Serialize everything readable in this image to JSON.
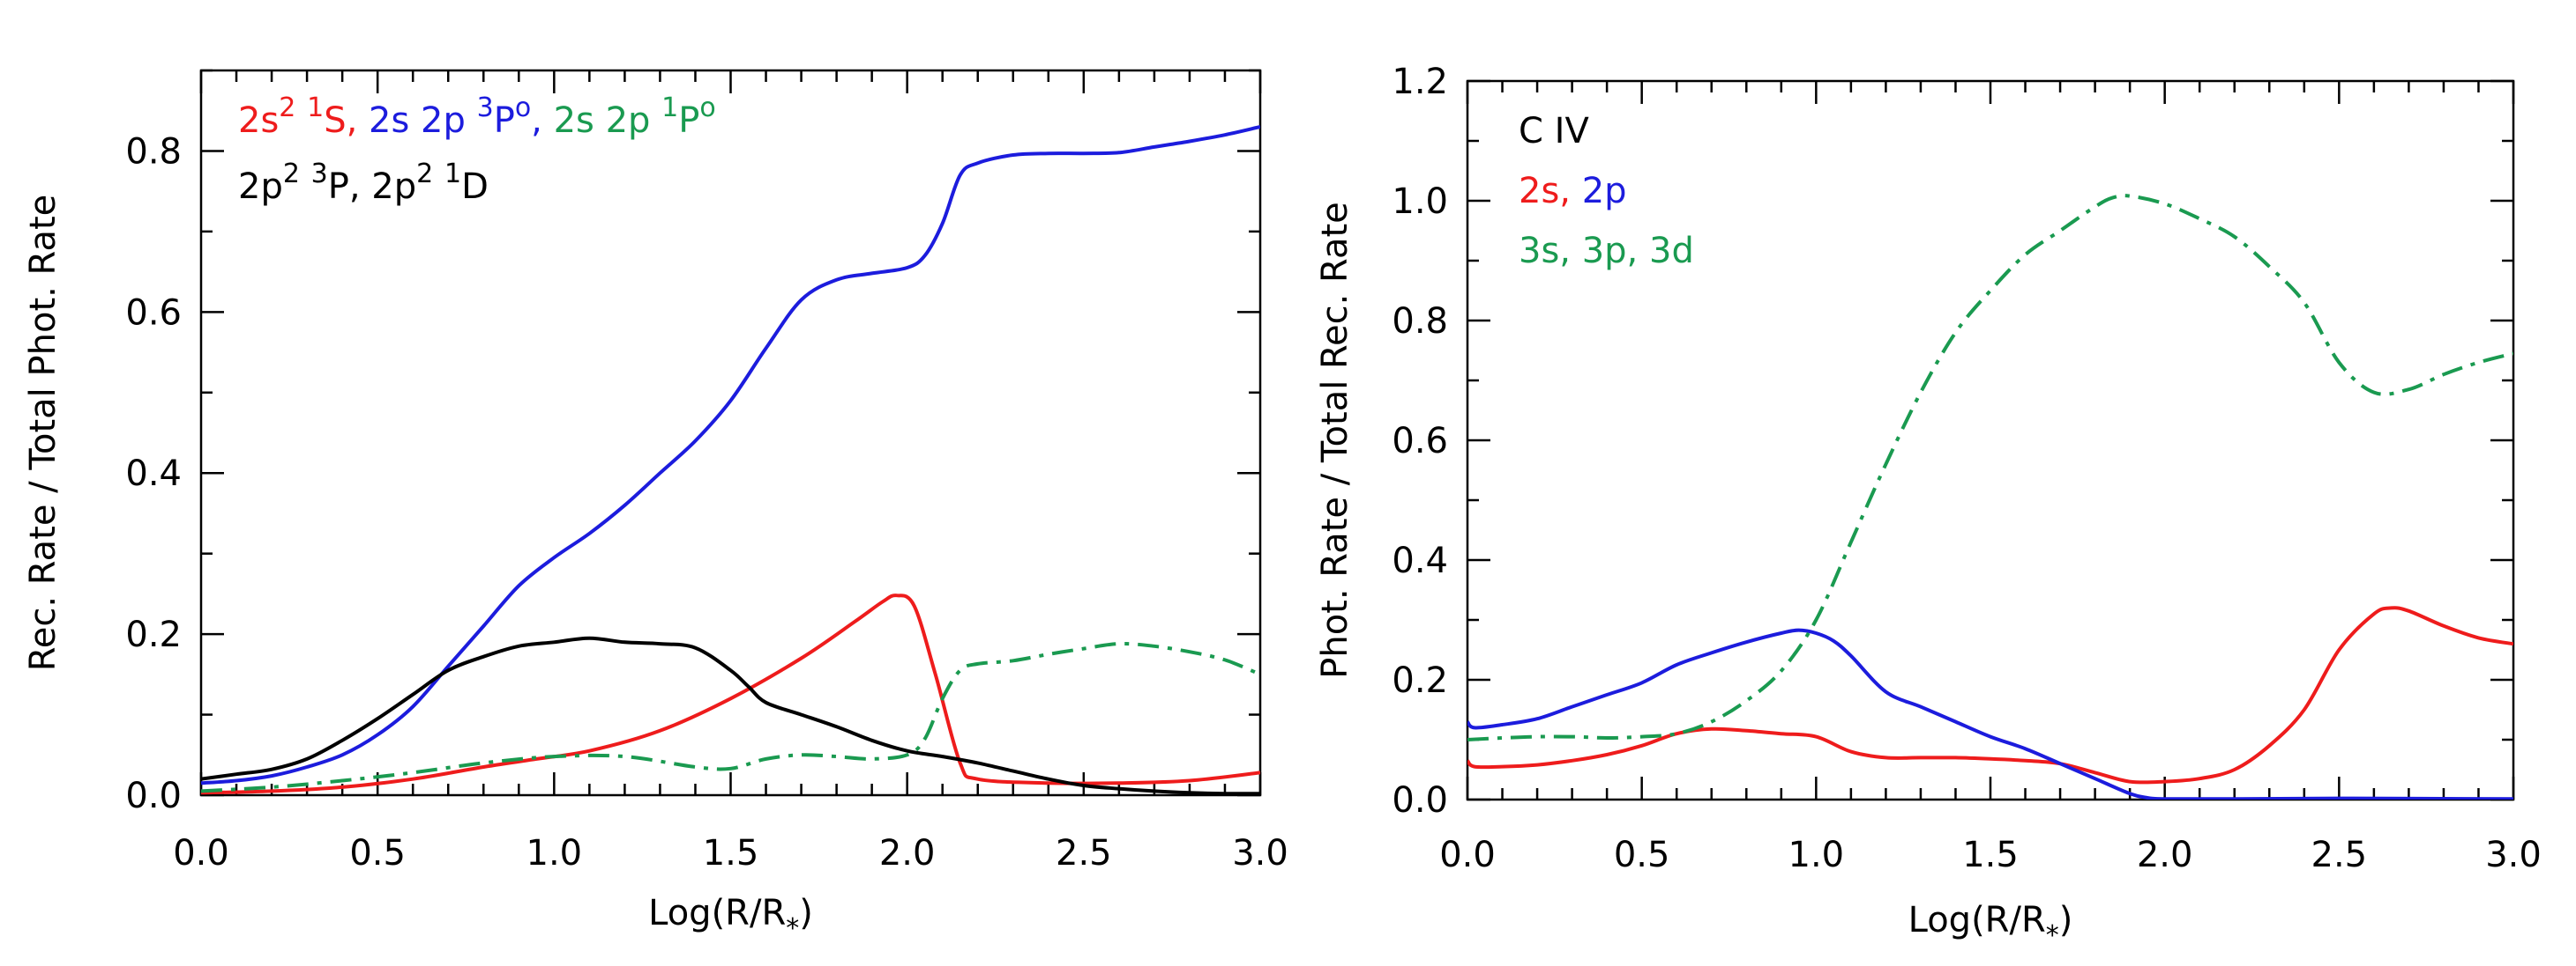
{
  "chart_data": [
    {
      "type": "line",
      "xlabel": "Log(R/R",
      "xlabel_sub": "*",
      "xlabel_end": ")",
      "ylabel": "Rec. Rate / Total Phot. Rate",
      "xlim": [
        0.0,
        3.0
      ],
      "ylim": [
        0.0,
        0.9
      ],
      "xticks": [
        0.0,
        0.5,
        1.0,
        1.5,
        2.0,
        2.5,
        3.0
      ],
      "xtick_labels": [
        "0.0",
        "0.5",
        "1.0",
        "1.5",
        "2.0",
        "2.5",
        "3.0"
      ],
      "yticks": [
        0.0,
        0.2,
        0.4,
        0.6,
        0.8
      ],
      "ytick_labels": [
        "0.0",
        "0.2",
        "0.4",
        "0.6",
        "0.8"
      ],
      "legend": {
        "line1": [
          {
            "text": "2s",
            "sup": "2",
            "rest": " ",
            "sup2": "1",
            "tail": "S,",
            "color": "#ee1c1c"
          },
          {
            "text": " 2s 2p ",
            "sup": "3",
            "tail": "P",
            "sup3": "o",
            "end": ",",
            "color": "#1c1cdd"
          },
          {
            "text": " 2s 2p ",
            "sup": "1",
            "tail": "P",
            "sup3": "o",
            "color": "#1a9a50"
          }
        ],
        "line2": [
          {
            "text": "2p",
            "sup": "2",
            "rest": " ",
            "sup2": "3",
            "tail": "P,",
            "color": "#000000"
          },
          {
            "text": " 2p",
            "sup": "2",
            "rest": " ",
            "sup2": "1",
            "tail": "D",
            "color": "#000000"
          }
        ]
      },
      "series": [
        {
          "name": "2s2 1S",
          "color": "#ee1c1c",
          "dash": "solid",
          "x": [
            0.0,
            0.2,
            0.4,
            0.6,
            0.8,
            0.95,
            1.1,
            1.3,
            1.5,
            1.7,
            1.85,
            1.93,
            1.97,
            2.02,
            2.08,
            2.15,
            2.2,
            2.4,
            2.6,
            2.8,
            3.0
          ],
          "y": [
            0.003,
            0.005,
            0.01,
            0.02,
            0.035,
            0.045,
            0.055,
            0.08,
            0.12,
            0.17,
            0.215,
            0.24,
            0.248,
            0.235,
            0.15,
            0.04,
            0.02,
            0.015,
            0.015,
            0.018,
            0.028
          ]
        },
        {
          "name": "2s 2p 3Po",
          "color": "#1c1cdd",
          "dash": "solid",
          "x": [
            0.0,
            0.1,
            0.2,
            0.3,
            0.4,
            0.5,
            0.6,
            0.7,
            0.8,
            0.9,
            1.0,
            1.1,
            1.2,
            1.3,
            1.4,
            1.5,
            1.6,
            1.7,
            1.8,
            1.9,
            2.0,
            2.05,
            2.1,
            2.15,
            2.2,
            2.3,
            2.4,
            2.5,
            2.6,
            2.7,
            2.8,
            2.9,
            3.0
          ],
          "y": [
            0.015,
            0.018,
            0.024,
            0.035,
            0.05,
            0.075,
            0.11,
            0.16,
            0.21,
            0.26,
            0.295,
            0.325,
            0.36,
            0.4,
            0.44,
            0.49,
            0.555,
            0.615,
            0.64,
            0.648,
            0.655,
            0.67,
            0.71,
            0.77,
            0.785,
            0.795,
            0.797,
            0.797,
            0.798,
            0.805,
            0.812,
            0.82,
            0.83
          ]
        },
        {
          "name": "2s 2p 1Po",
          "color": "#1a9a50",
          "dash": "dashdot",
          "x": [
            0.0,
            0.2,
            0.4,
            0.6,
            0.8,
            1.0,
            1.2,
            1.4,
            1.5,
            1.6,
            1.7,
            1.8,
            1.9,
            2.0,
            2.05,
            2.1,
            2.15,
            2.2,
            2.3,
            2.4,
            2.5,
            2.6,
            2.7,
            2.8,
            2.9,
            3.0
          ],
          "y": [
            0.005,
            0.01,
            0.018,
            0.028,
            0.04,
            0.048,
            0.048,
            0.035,
            0.033,
            0.045,
            0.05,
            0.048,
            0.045,
            0.05,
            0.07,
            0.12,
            0.155,
            0.163,
            0.167,
            0.175,
            0.182,
            0.188,
            0.185,
            0.178,
            0.168,
            0.15
          ]
        },
        {
          "name": "2p2 3P",
          "color": "#000000",
          "dash": "solid",
          "x": [
            0.0,
            0.1,
            0.2,
            0.3,
            0.4,
            0.5,
            0.6,
            0.7,
            0.8,
            0.9,
            1.0,
            1.1,
            1.2,
            1.3,
            1.4,
            1.5,
            1.55,
            1.6,
            1.7,
            1.8,
            1.9,
            2.0,
            2.1,
            2.2,
            2.3,
            2.4,
            2.5,
            2.6,
            2.7,
            2.8,
            2.9,
            3.0
          ],
          "y": [
            0.02,
            0.026,
            0.032,
            0.045,
            0.068,
            0.095,
            0.125,
            0.155,
            0.172,
            0.185,
            0.19,
            0.195,
            0.19,
            0.188,
            0.183,
            0.155,
            0.135,
            0.115,
            0.1,
            0.085,
            0.068,
            0.055,
            0.048,
            0.04,
            0.03,
            0.02,
            0.012,
            0.008,
            0.005,
            0.003,
            0.002,
            0.002
          ]
        }
      ]
    },
    {
      "type": "line",
      "xlabel": "Log(R/R",
      "xlabel_sub": "*",
      "xlabel_end": ")",
      "ylabel": "Phot. Rate / Total Rec. Rate",
      "xlim": [
        0.0,
        3.0
      ],
      "ylim": [
        0.0,
        1.2
      ],
      "xticks": [
        0.0,
        0.5,
        1.0,
        1.5,
        2.0,
        2.5,
        3.0
      ],
      "xtick_labels": [
        "0.0",
        "0.5",
        "1.0",
        "1.5",
        "2.0",
        "2.5",
        "3.0"
      ],
      "yticks": [
        0.0,
        0.2,
        0.4,
        0.6,
        0.8,
        1.0,
        1.2
      ],
      "ytick_labels": [
        "0.0",
        "0.2",
        "0.4",
        "0.6",
        "0.8",
        "1.0",
        "1.2"
      ],
      "legend": {
        "line1": [
          {
            "text": "C IV",
            "color": "#000000"
          }
        ],
        "line2": [
          {
            "text": "2s,",
            "color": "#ee1c1c"
          },
          {
            "text": " 2p",
            "color": "#1c1cdd"
          }
        ],
        "line3": [
          {
            "text": "3s, 3p, 3d",
            "color": "#1a9a50"
          }
        ]
      },
      "series": [
        {
          "name": "2s",
          "color": "#ee1c1c",
          "dash": "solid",
          "x": [
            0.0,
            0.02,
            0.1,
            0.2,
            0.3,
            0.4,
            0.5,
            0.6,
            0.7,
            0.8,
            0.9,
            1.0,
            1.1,
            1.2,
            1.3,
            1.4,
            1.5,
            1.6,
            1.7,
            1.8,
            1.9,
            2.0,
            2.1,
            2.2,
            2.3,
            2.4,
            2.5,
            2.6,
            2.65,
            2.7,
            2.8,
            2.9,
            3.0
          ],
          "y": [
            0.065,
            0.055,
            0.055,
            0.058,
            0.065,
            0.075,
            0.09,
            0.11,
            0.118,
            0.115,
            0.11,
            0.105,
            0.08,
            0.07,
            0.07,
            0.07,
            0.068,
            0.065,
            0.06,
            0.045,
            0.03,
            0.03,
            0.035,
            0.05,
            0.09,
            0.15,
            0.25,
            0.31,
            0.32,
            0.315,
            0.29,
            0.27,
            0.26
          ]
        },
        {
          "name": "2p",
          "color": "#1c1cdd",
          "dash": "solid",
          "x": [
            0.0,
            0.02,
            0.1,
            0.2,
            0.3,
            0.4,
            0.5,
            0.6,
            0.7,
            0.8,
            0.9,
            0.95,
            1.0,
            1.05,
            1.1,
            1.2,
            1.3,
            1.4,
            1.5,
            1.6,
            1.7,
            1.8,
            1.9,
            1.95,
            2.0,
            2.2,
            2.5,
            3.0
          ],
          "y": [
            0.13,
            0.12,
            0.125,
            0.135,
            0.155,
            0.175,
            0.195,
            0.225,
            0.245,
            0.263,
            0.278,
            0.283,
            0.278,
            0.265,
            0.24,
            0.18,
            0.155,
            0.13,
            0.105,
            0.085,
            0.06,
            0.035,
            0.01,
            0.003,
            0.001,
            0.001,
            0.002,
            0.001
          ]
        },
        {
          "name": "3s 3p 3d",
          "color": "#1a9a50",
          "dash": "dashdot",
          "x": [
            0.0,
            0.1,
            0.2,
            0.3,
            0.4,
            0.5,
            0.6,
            0.7,
            0.8,
            0.9,
            1.0,
            1.1,
            1.2,
            1.3,
            1.4,
            1.5,
            1.6,
            1.7,
            1.8,
            1.85,
            1.9,
            2.0,
            2.1,
            2.2,
            2.3,
            2.4,
            2.5,
            2.6,
            2.7,
            2.8,
            2.9,
            3.0
          ],
          "y": [
            0.1,
            0.103,
            0.105,
            0.105,
            0.103,
            0.105,
            0.11,
            0.13,
            0.165,
            0.215,
            0.3,
            0.43,
            0.56,
            0.68,
            0.78,
            0.85,
            0.91,
            0.95,
            0.99,
            1.005,
            1.008,
            0.995,
            0.97,
            0.94,
            0.89,
            0.83,
            0.73,
            0.68,
            0.685,
            0.71,
            0.73,
            0.745
          ]
        }
      ]
    }
  ]
}
